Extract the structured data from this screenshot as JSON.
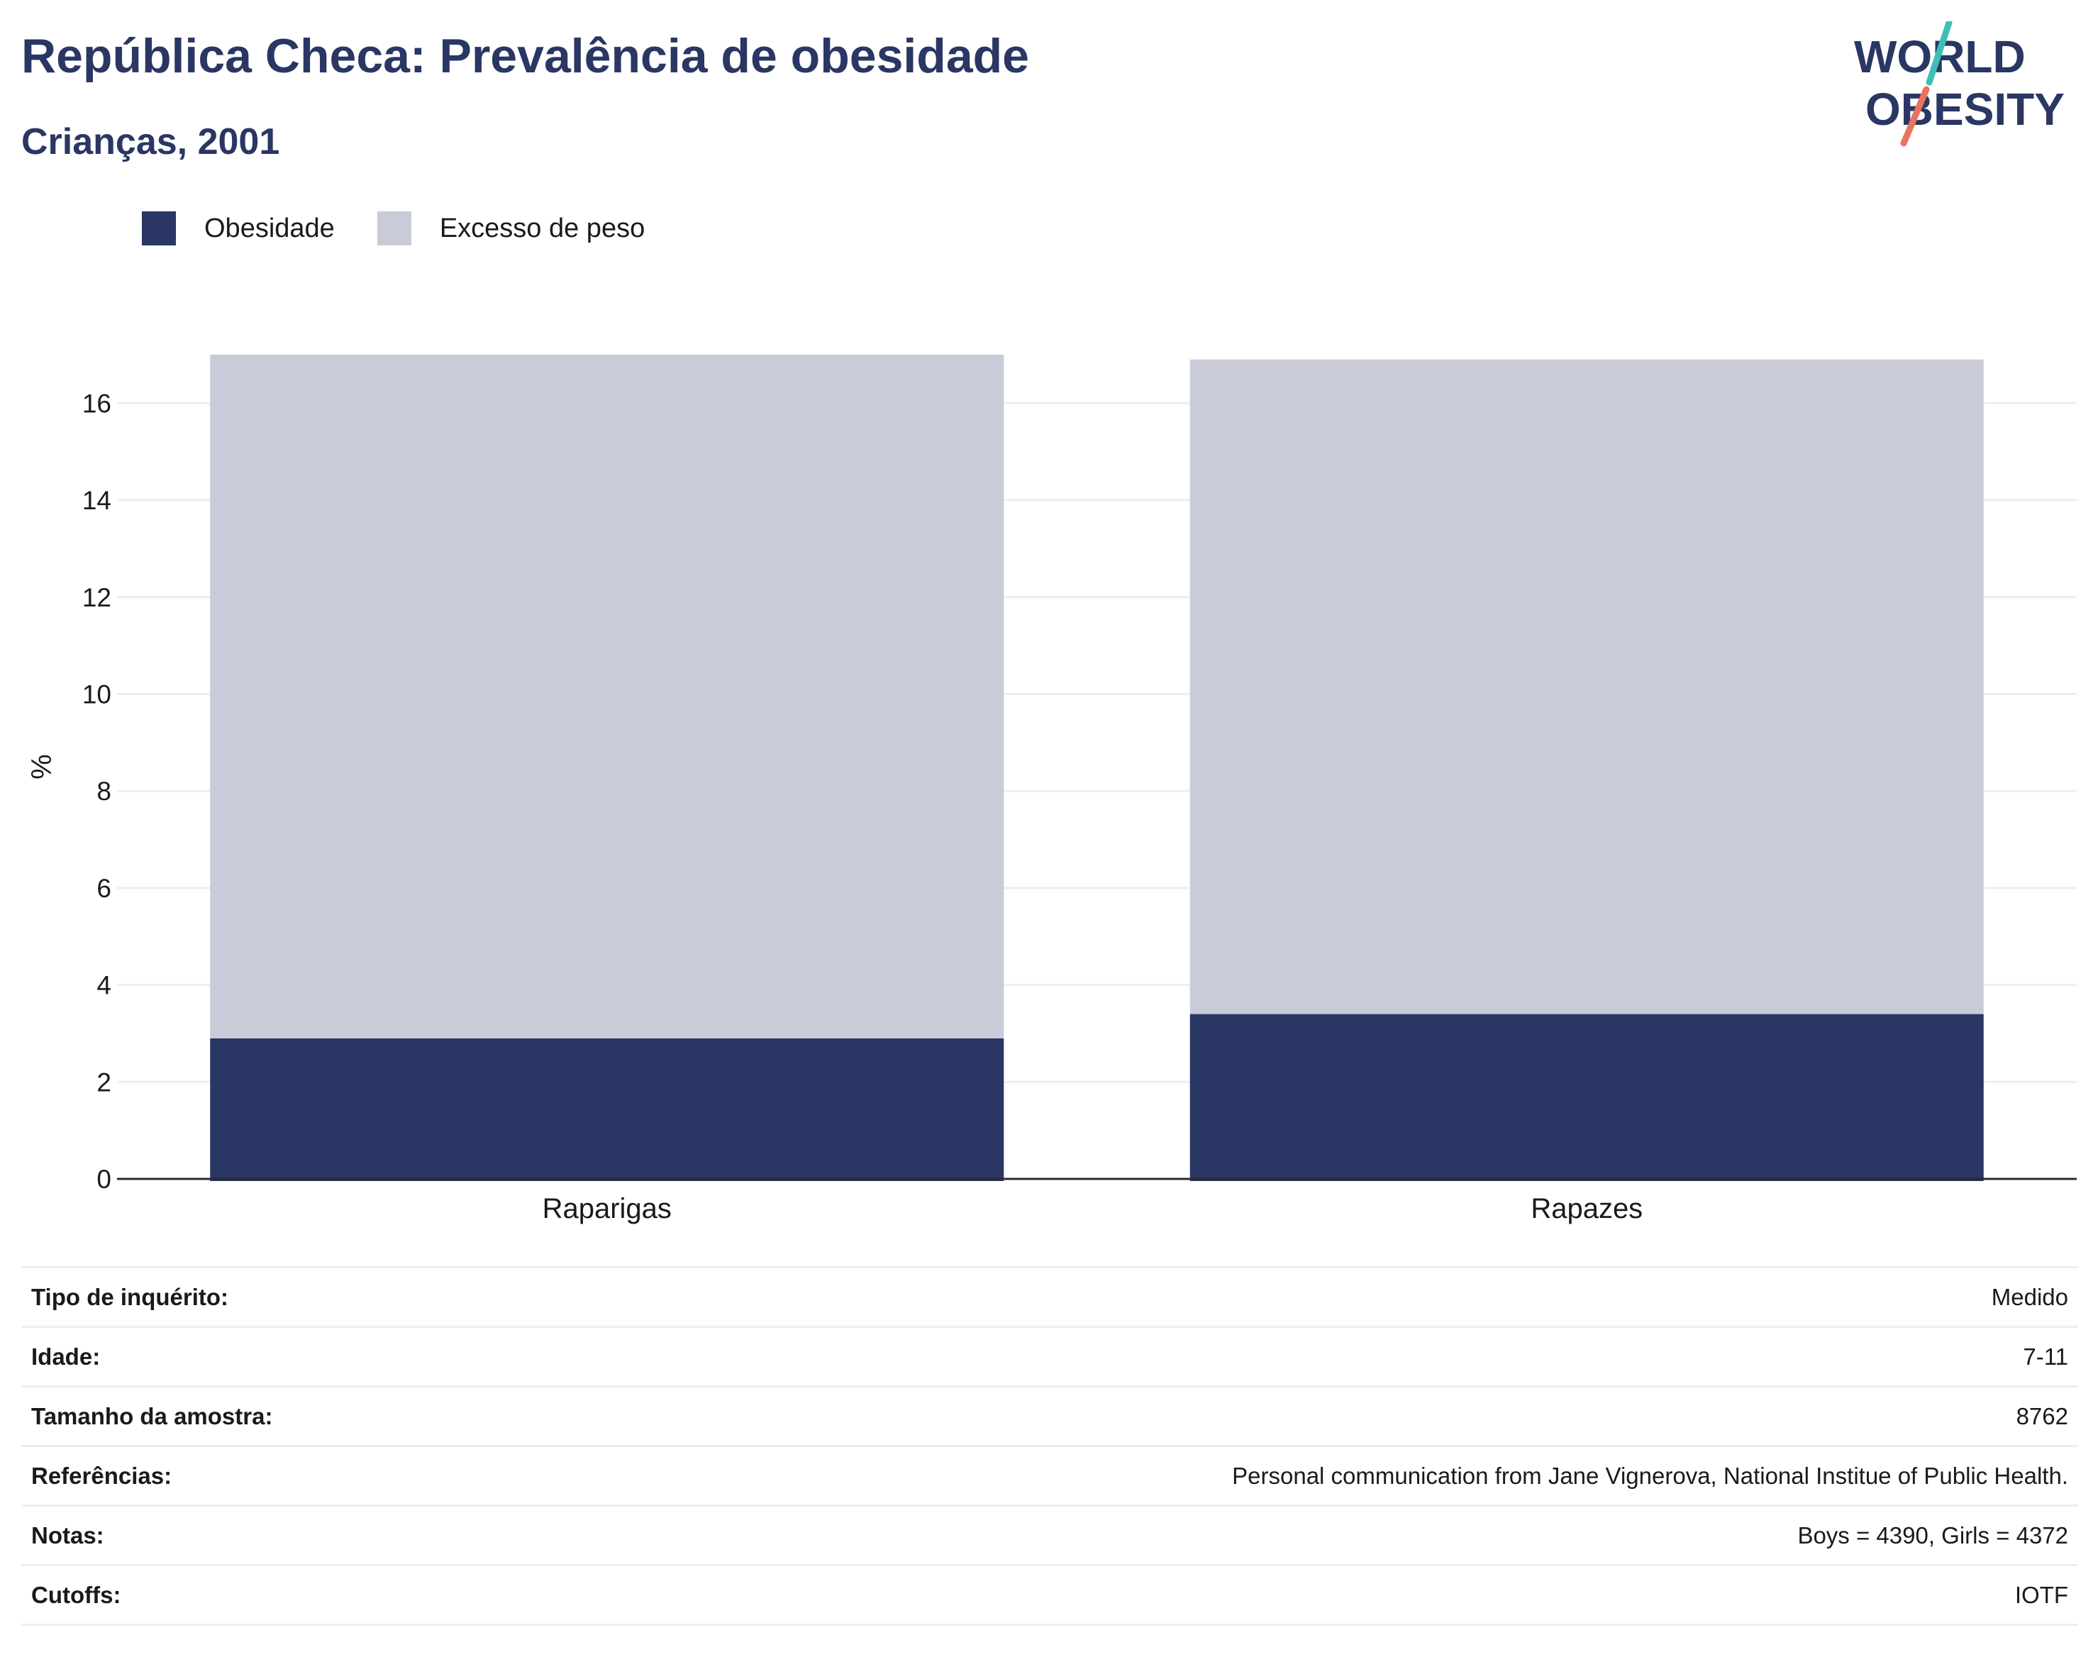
{
  "title": "República Checa: Prevalência de obesidade",
  "subtitle": "Crianças, 2001",
  "logo": {
    "line1": "WORLD",
    "line2": "OBESITY"
  },
  "legend": [
    {
      "label": "Obesidade",
      "color": "#2a3663"
    },
    {
      "label": "Excesso de peso",
      "color": "#c9ccd8"
    }
  ],
  "chart_data": {
    "type": "bar",
    "stacked": true,
    "categories": [
      "Raparigas",
      "Rapazes"
    ],
    "series": [
      {
        "name": "Obesidade",
        "color": "#2a3663",
        "values": [
          2.9,
          3.4
        ]
      },
      {
        "name": "Excesso de peso",
        "color": "#c9ccd8",
        "values": [
          14.1,
          13.5
        ]
      }
    ],
    "ylabel": "%",
    "ylim": [
      0,
      17
    ],
    "yticks": [
      0,
      2,
      4,
      6,
      8,
      10,
      12,
      14,
      16
    ],
    "grid": true,
    "legend_position": "top-left"
  },
  "info": [
    {
      "label": "Tipo de inquérito:",
      "value": "Medido"
    },
    {
      "label": "Idade:",
      "value": "7-11"
    },
    {
      "label": "Tamanho da amostra:",
      "value": "8762"
    },
    {
      "label": "Referências:",
      "value": "Personal communication from Jane Vignerova, National Institue of Public Health."
    },
    {
      "label": "Notas:",
      "value": "Boys = 4390, Girls = 4372"
    },
    {
      "label": "Cutoffs:",
      "value": "IOTF"
    }
  ]
}
